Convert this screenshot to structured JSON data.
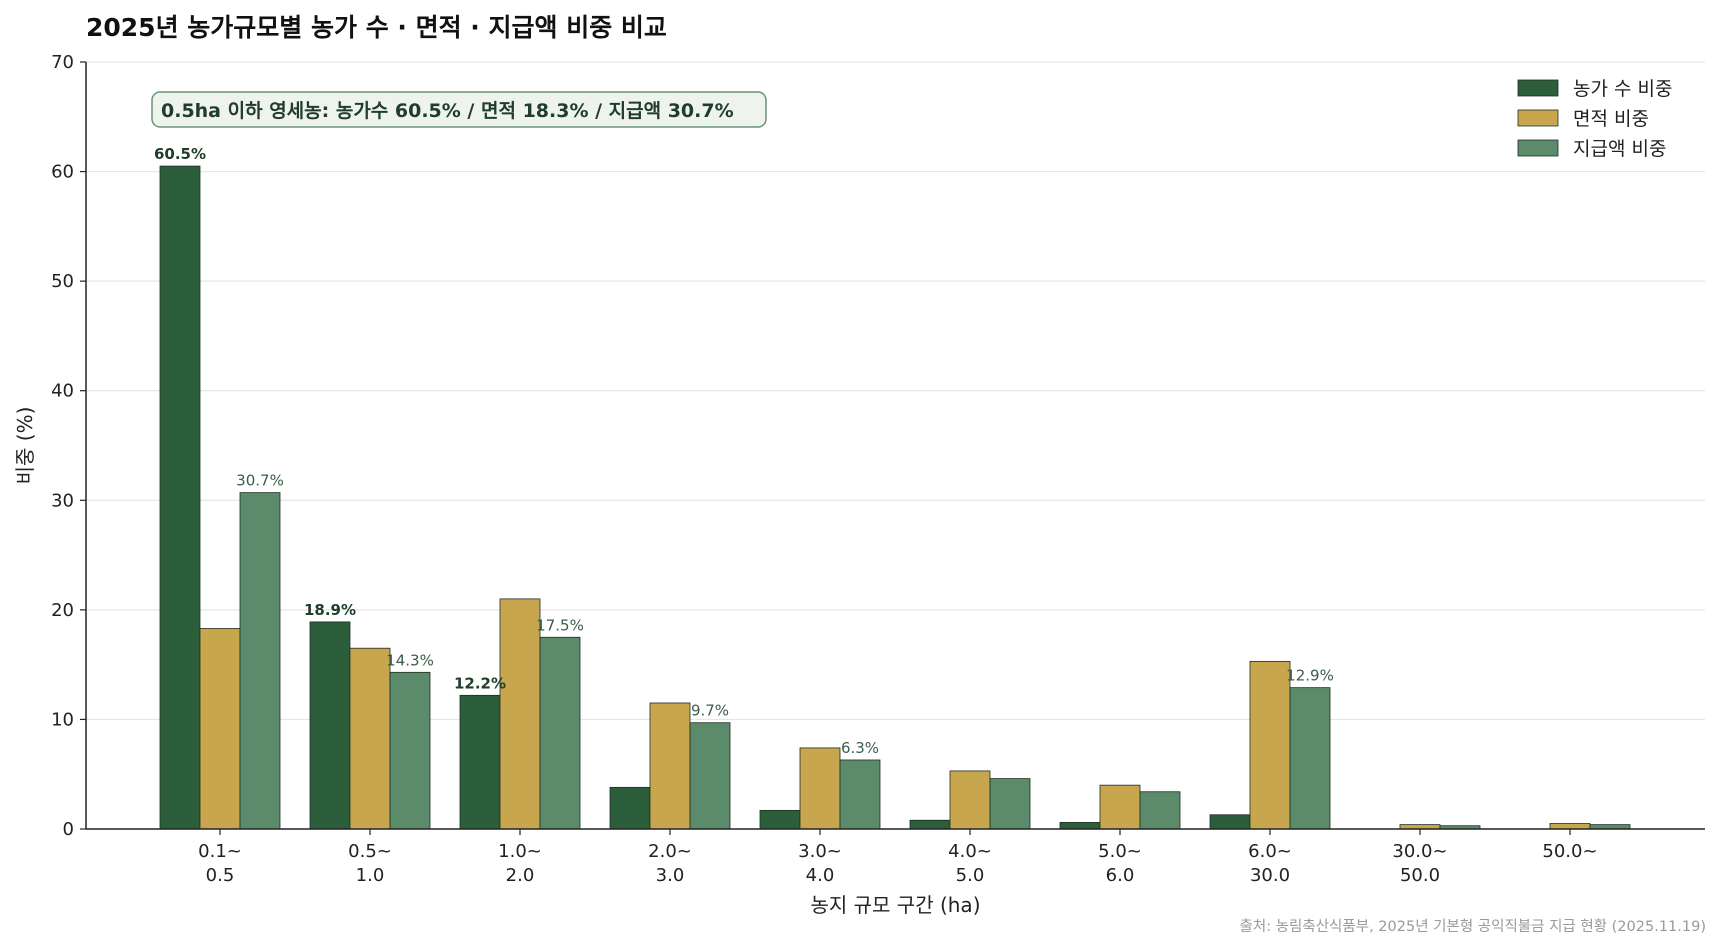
{
  "chart_data": {
    "type": "bar",
    "title": "2025년 농가규모별 농가 수 · 면적 · 지급액 비중 비교",
    "xlabel": "농지 규모 구간 (ha)",
    "ylabel": "비중 (%)",
    "ylim": [
      0,
      70
    ],
    "yticks": [
      0,
      10,
      20,
      30,
      40,
      50,
      60,
      70
    ],
    "grid": "horizontal",
    "legend_position": "top-right",
    "categories": [
      [
        "0.1~",
        "0.5"
      ],
      [
        "0.5~",
        "1.0"
      ],
      [
        "1.0~",
        "2.0"
      ],
      [
        "2.0~",
        "3.0"
      ],
      [
        "3.0~",
        "4.0"
      ],
      [
        "4.0~",
        "5.0"
      ],
      [
        "5.0~",
        "6.0"
      ],
      [
        "6.0~",
        "30.0"
      ],
      [
        "30.0~",
        "50.0"
      ],
      [
        "50.0~",
        ""
      ]
    ],
    "series": [
      {
        "name": "농가 수 비중",
        "color": "#2d5e3c",
        "values": [
          60.5,
          18.9,
          12.2,
          3.8,
          1.7,
          0.8,
          0.6,
          1.3,
          0.0,
          0.0
        ]
      },
      {
        "name": "면적 비중",
        "color": "#c8a64e",
        "values": [
          18.3,
          16.5,
          21.0,
          11.5,
          7.4,
          5.3,
          4.0,
          15.3,
          0.4,
          0.5
        ]
      },
      {
        "name": "지급액 비중",
        "color": "#5b8b6a",
        "values": [
          30.7,
          14.3,
          17.5,
          9.7,
          6.3,
          4.6,
          3.4,
          12.9,
          0.3,
          0.4
        ]
      }
    ],
    "data_labels": [
      {
        "series": 0,
        "category": 0,
        "text": "60.5%",
        "style": "strong"
      },
      {
        "series": 0,
        "category": 1,
        "text": "18.9%",
        "style": "strong"
      },
      {
        "series": 0,
        "category": 2,
        "text": "12.2%",
        "style": "strong"
      },
      {
        "series": 2,
        "category": 0,
        "text": "30.7%",
        "style": "soft"
      },
      {
        "series": 2,
        "category": 1,
        "text": "14.3%",
        "style": "soft"
      },
      {
        "series": 2,
        "category": 2,
        "text": "17.5%",
        "style": "soft"
      },
      {
        "series": 2,
        "category": 3,
        "text": "9.7%",
        "style": "soft"
      },
      {
        "series": 2,
        "category": 4,
        "text": "6.3%",
        "style": "soft"
      },
      {
        "series": 2,
        "category": 7,
        "text": "12.9%",
        "style": "soft"
      }
    ],
    "annotation": "0.5ha 이하 영세농: 농가수 60.5% / 면적 18.3% / 지급액 30.7%",
    "source": "출처: 농림축산식품부, 2025년 기본형 공익직불금 지급 현황 (2025.11.19)"
  }
}
